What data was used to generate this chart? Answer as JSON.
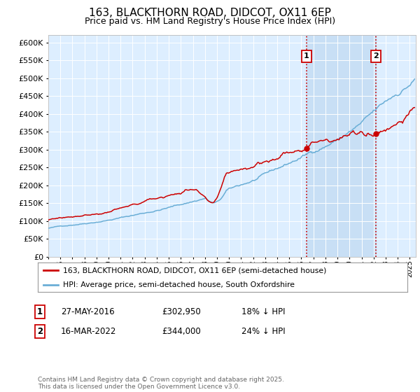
{
  "title": "163, BLACKTHORN ROAD, DIDCOT, OX11 6EP",
  "subtitle": "Price paid vs. HM Land Registry's House Price Index (HPI)",
  "legend_line1": "163, BLACKTHORN ROAD, DIDCOT, OX11 6EP (semi-detached house)",
  "legend_line2": "HPI: Average price, semi-detached house, South Oxfordshire",
  "annotation1_date": "27-MAY-2016",
  "annotation1_price": "£302,950",
  "annotation1_hpi": "18% ↓ HPI",
  "annotation1_year": 2016.41,
  "annotation1_value": 302950,
  "annotation2_date": "16-MAR-2022",
  "annotation2_price": "£344,000",
  "annotation2_hpi": "24% ↓ HPI",
  "annotation2_year": 2022.21,
  "annotation2_value": 344000,
  "footer": "Contains HM Land Registry data © Crown copyright and database right 2025.\nThis data is licensed under the Open Government Licence v3.0.",
  "hpi_color": "#6aaed6",
  "price_color": "#cc0000",
  "vline_color": "#cc0000",
  "background_plot": "#ddeeff",
  "background_highlight": "#c8dff5",
  "ylim": [
    0,
    620000
  ],
  "yticks": [
    0,
    50000,
    100000,
    150000,
    200000,
    250000,
    300000,
    350000,
    400000,
    450000,
    500000,
    550000,
    600000
  ],
  "xlim_start": 1995.0,
  "xlim_end": 2025.5
}
